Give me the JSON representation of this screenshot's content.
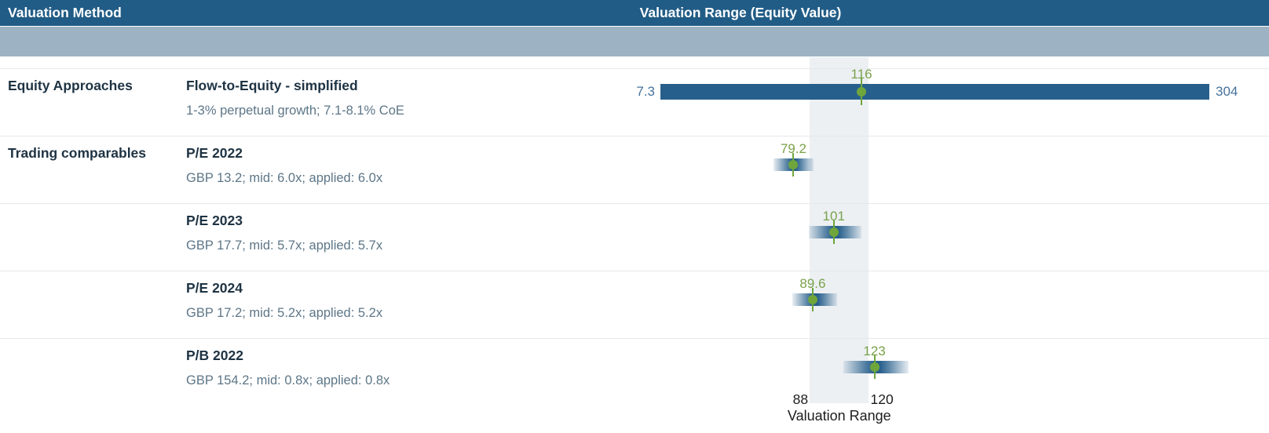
{
  "header": {
    "method_col": "Valuation Method",
    "range_col": "Valuation Range (Equity Value)"
  },
  "colors": {
    "header_bg": "#215C86",
    "subheader_bg": "#9DB3C4",
    "bar_blue": "#275F8C",
    "band_bg": "#ECF0F3",
    "divider_color": "#E6E8EA",
    "title_color": "#1E3343",
    "subtitle_color": "#5D7687",
    "range_label_color": "#44719C",
    "green_dot": "#6FA63C",
    "green_label": "#7AA24B",
    "axis_color": "#1D1D1D"
  },
  "chart_data": {
    "type": "bar",
    "subtype": "horizontal-range-bars (valuation football field)",
    "title": "Valuation Range (Equity Value)",
    "xlabel": "Valuation Range",
    "x_map": {
      "value_min": 7.3,
      "x_min": 841,
      "value_max": 304,
      "x_max": 1540
    },
    "valuation_band": {
      "low": 88,
      "high": 120,
      "label": "Valuation Range"
    },
    "grid": false,
    "rows": [
      {
        "group": "Equity Approaches",
        "method": "Flow-to-Equity - simplified",
        "detail": "1-3% perpetual growth; 7.1-8.1% CoE",
        "low": 7.3,
        "high": 304,
        "mid": 116,
        "low_label": "7.3",
        "high_label": "304",
        "mid_label": "116",
        "style": "solid"
      },
      {
        "group": "Trading comparables",
        "method": "P/E 2022",
        "detail": "GBP 13.2; mid: 6.0x; applied: 6.0x",
        "low": 68.5,
        "high": 90,
        "mid": 79.2,
        "mid_label": "79.2",
        "style": "gradient"
      },
      {
        "group": "",
        "method": "P/E 2023",
        "detail": "GBP 17.7; mid: 5.7x; applied: 5.7x",
        "low": 87.5,
        "high": 116,
        "mid": 101,
        "mid_label": "101",
        "style": "gradient"
      },
      {
        "group": "",
        "method": "P/E 2024",
        "detail": "GBP 17.2; mid: 5.2x; applied: 5.2x",
        "low": 78.5,
        "high": 103,
        "mid": 89.6,
        "mid_label": "89.6",
        "style": "gradient"
      },
      {
        "group": "",
        "method": "P/B 2022",
        "detail": "GBP 154.2; mid: 0.8x; applied: 0.8x",
        "low": 106,
        "high": 141.5,
        "mid": 123,
        "mid_label": "123",
        "style": "gradient"
      }
    ]
  }
}
